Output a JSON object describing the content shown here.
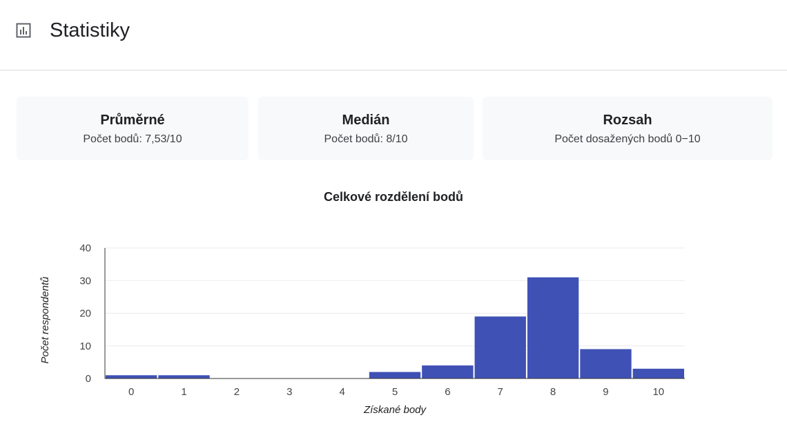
{
  "header": {
    "title": "Statistiky",
    "icon": "bar-chart-icon"
  },
  "stats": [
    {
      "title": "Průměrné",
      "subtitle": "Počet bodů: 7,53/10"
    },
    {
      "title": "Medián",
      "subtitle": "Počet bodů: 8/10"
    },
    {
      "title": "Rozsah",
      "subtitle": "Počet dosažených bodů 0−10"
    }
  ],
  "chart_data": {
    "type": "bar",
    "title": "Celkové rozdělení bodů",
    "xlabel": "Získané body",
    "ylabel": "Počet respondentů",
    "categories": [
      "0",
      "1",
      "2",
      "3",
      "4",
      "5",
      "6",
      "7",
      "8",
      "9",
      "10"
    ],
    "values": [
      1,
      1,
      0,
      0,
      0,
      2,
      4,
      19,
      31,
      9,
      3
    ],
    "ylim": [
      0,
      40
    ],
    "yticks": [
      0,
      10,
      20,
      30,
      40
    ],
    "bar_color": "#3f51b5",
    "grid": true
  }
}
